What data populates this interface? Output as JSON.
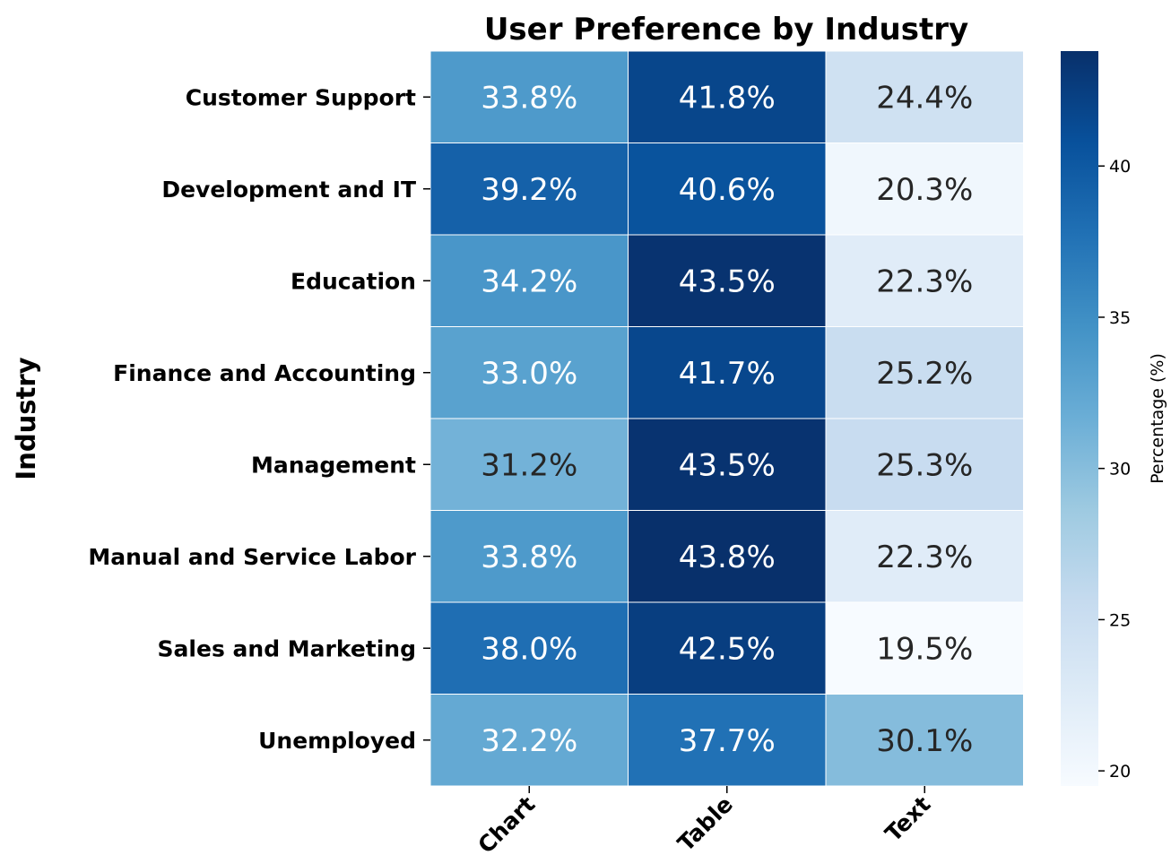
{
  "chart_data": {
    "type": "heatmap",
    "title": "User Preference by Industry",
    "ylabel": "Industry",
    "xlabel": "",
    "rows": [
      "Customer Support",
      "Development and IT",
      "Education",
      "Finance and Accounting",
      "Management",
      "Manual and Service Labor",
      "Sales and Marketing",
      "Unemployed"
    ],
    "columns": [
      "Chart",
      "Table",
      "Text"
    ],
    "values": [
      [
        33.8,
        41.8,
        24.4
      ],
      [
        39.2,
        40.6,
        20.3
      ],
      [
        34.2,
        43.5,
        22.3
      ],
      [
        33.0,
        41.7,
        25.2
      ],
      [
        31.2,
        43.5,
        25.3
      ],
      [
        33.8,
        43.8,
        22.3
      ],
      [
        38.0,
        42.5,
        19.5
      ],
      [
        32.2,
        37.7,
        30.1
      ]
    ],
    "value_suffix": "%",
    "colormap": "Blues",
    "colorbar": {
      "label": "Percentage (%)",
      "min": 19.5,
      "max": 43.8,
      "ticks": [
        20,
        25,
        30,
        35,
        40
      ]
    }
  }
}
